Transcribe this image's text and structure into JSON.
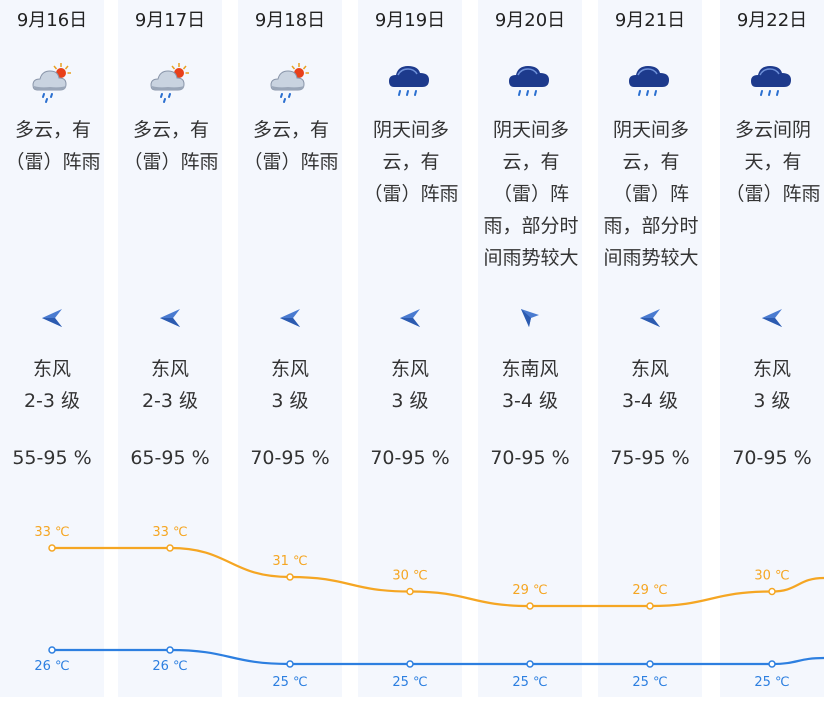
{
  "days": [
    {
      "date": "9月16日",
      "icon": "partly-cloudy-thunder-rain-icon",
      "desc": "多云，有（雷）阵雨",
      "wind_dir": "东风",
      "wind_level": "2-3 级",
      "wind_arrow": "arrow-left-icon",
      "humidity": "55-95 %",
      "high": "33 ℃",
      "low": "26 ℃"
    },
    {
      "date": "9月17日",
      "icon": "partly-cloudy-thunder-rain-icon",
      "desc": "多云，有（雷）阵雨",
      "wind_dir": "东风",
      "wind_level": "2-3 级",
      "wind_arrow": "arrow-left-icon",
      "humidity": "65-95 %",
      "high": "33 ℃",
      "low": "26 ℃"
    },
    {
      "date": "9月18日",
      "icon": "partly-cloudy-thunder-rain-icon",
      "desc": "多云，有（雷）阵雨",
      "wind_dir": "东风",
      "wind_level": "3 级",
      "wind_arrow": "arrow-left-icon",
      "humidity": "70-95 %",
      "high": "31 ℃",
      "low": "25 ℃"
    },
    {
      "date": "9月19日",
      "icon": "dark-cloud-rain-icon",
      "desc": "阴天间多云，有（雷）阵雨",
      "wind_dir": "东风",
      "wind_level": "3 级",
      "wind_arrow": "arrow-left-icon",
      "humidity": "70-95 %",
      "high": "30 ℃",
      "low": "25 ℃"
    },
    {
      "date": "9月20日",
      "icon": "dark-cloud-rain-icon",
      "desc": "阴天间多云，有（雷）阵雨，部分时间雨势较大",
      "wind_dir": "东南风",
      "wind_level": "3-4 级",
      "wind_arrow": "arrow-up-left-icon",
      "humidity": "70-95 %",
      "high": "29 ℃",
      "low": "25 ℃"
    },
    {
      "date": "9月21日",
      "icon": "dark-cloud-rain-icon",
      "desc": "阴天间多云，有（雷）阵雨，部分时间雨势较大",
      "wind_dir": "东风",
      "wind_level": "3-4 级",
      "wind_arrow": "arrow-left-icon",
      "humidity": "75-95 %",
      "high": "29 ℃",
      "low": "25 ℃"
    },
    {
      "date": "9月22日",
      "icon": "dark-cloud-rain-icon",
      "desc": "多云间阴天，有（雷）阵雨",
      "wind_dir": "东风",
      "wind_level": "3 级",
      "wind_arrow": "arrow-left-icon",
      "humidity": "70-95 %",
      "high": "30 ℃",
      "low": "25 ℃"
    }
  ],
  "chart_data": {
    "type": "line",
    "categories": [
      "9月16日",
      "9月17日",
      "9月18日",
      "9月19日",
      "9月20日",
      "9月21日",
      "9月22日"
    ],
    "series": [
      {
        "values": [
          33,
          33,
          31,
          30,
          29,
          29,
          30
        ],
        "color": "#f5a623"
      },
      {
        "values": [
          26,
          26,
          25,
          25,
          25,
          25,
          25
        ],
        "color": "#2d7fe0"
      }
    ],
    "labels_high": [
      "33 ℃",
      "33 ℃",
      "31 ℃",
      "30 ℃",
      "29 ℃",
      "29 ℃",
      "30 ℃"
    ],
    "labels_low": [
      "26 ℃",
      "26 ℃",
      "25 ℃",
      "25 ℃",
      "25 ℃",
      "25 ℃",
      "25 ℃"
    ]
  },
  "colors": {
    "high": "#f5a623",
    "low": "#2d7fe0",
    "column_bg": "#f4f7fd",
    "arrow": "#4a7bd0"
  }
}
